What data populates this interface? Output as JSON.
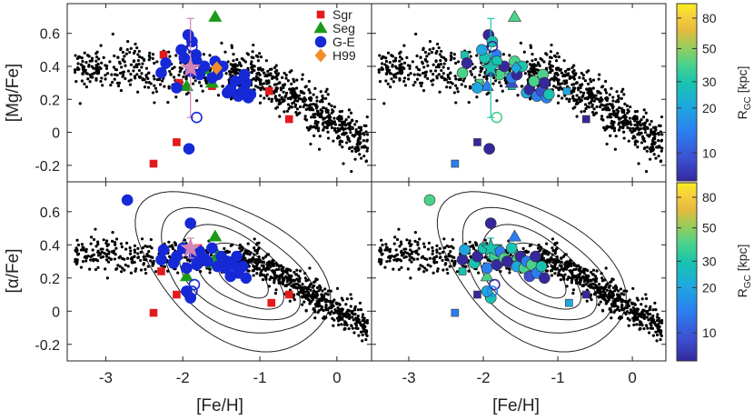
{
  "figure": {
    "xlabel": "[Fe/H]",
    "ylabel_top": "[Mg/Fe]",
    "ylabel_bottom": "[α/Fe]",
    "colorbar_label": "R",
    "colorbar_label_sub": "GC",
    "colorbar_label_unit": "[kpc]"
  },
  "chart_data": [
    {
      "type": "scatter",
      "panel": "top-left",
      "xlabel": "[Fe/H]",
      "ylabel": "[Mg/Fe]",
      "xlim": [
        -3.5,
        0.45
      ],
      "ylim": [
        -0.3,
        0.78
      ],
      "xticks": [
        -3,
        -2,
        -1,
        0
      ],
      "yticks": [
        -0.2,
        0,
        0.2,
        0.4,
        0.6
      ],
      "legend": {
        "position": "top-right",
        "entries": [
          "Sgr",
          "Seg",
          "G-E",
          "H99"
        ]
      },
      "series": [
        {
          "name": "Sgr",
          "marker": "square",
          "color": "#e31a1c",
          "x": [
            -2.38,
            -2.25,
            -2.08,
            -1.62,
            -0.88,
            -0.62,
            -2.05
          ],
          "y": [
            -0.19,
            0.47,
            -0.06,
            0.28,
            0.25,
            0.08,
            0.3
          ]
        },
        {
          "name": "Seg",
          "marker": "triangle",
          "color": "#1a9a1a",
          "x": [
            -1.58,
            -1.95,
            -1.62,
            -1.72
          ],
          "y": [
            0.7,
            0.28,
            0.3,
            0.38
          ]
        },
        {
          "name": "G-E",
          "marker": "circle",
          "color": "#1529d6",
          "x": [
            -2.28,
            -2.22,
            -2.08,
            -1.98,
            -1.93,
            -1.88,
            -1.83,
            -1.92,
            -1.78,
            -1.72,
            -1.62,
            -1.58,
            -1.55,
            -1.48,
            -1.42,
            -1.38,
            -1.32,
            -1.28,
            -1.22,
            -1.2,
            -1.18,
            -1.15,
            -1.12,
            -1.9,
            -1.82,
            -2.02
          ],
          "y": [
            0.36,
            0.42,
            0.27,
            0.45,
            0.59,
            0.55,
            0.47,
            -0.1,
            0.35,
            0.4,
            0.33,
            0.43,
            0.35,
            0.4,
            0.24,
            0.26,
            0.31,
            0.22,
            0.25,
            0.35,
            0.3,
            0.21,
            0.23,
            0.37,
            0.43,
            0.5
          ]
        },
        {
          "name": "H99",
          "marker": "diamond",
          "color": "#f28c28",
          "x": [
            -1.56
          ],
          "y": [
            0.39
          ]
        },
        {
          "name": "",
          "marker": "star",
          "color": "#d483b6",
          "x": [
            -1.9
          ],
          "y": [
            0.39
          ],
          "yerr": [
            0.3
          ]
        },
        {
          "name": "",
          "marker": "open-circle",
          "color": "#1529d6",
          "x": [
            -1.88,
            -1.82
          ],
          "y": [
            0.52,
            0.09
          ]
        }
      ]
    },
    {
      "type": "scatter",
      "panel": "bottom-left",
      "xlabel": "[Fe/H]",
      "ylabel": "[α/Fe]",
      "xlim": [
        -3.5,
        0.45
      ],
      "ylim": [
        -0.3,
        0.78
      ],
      "xticks": [
        -3,
        -2,
        -1,
        0
      ],
      "yticks": [
        -0.2,
        0,
        0.2,
        0.4,
        0.6
      ],
      "contours": 5,
      "series": [
        {
          "name": "Sgr",
          "marker": "square",
          "color": "#e31a1c",
          "x": [
            -2.38,
            -2.28,
            -2.08,
            -1.65,
            -0.85,
            -0.62,
            -1.8
          ],
          "y": [
            -0.01,
            0.24,
            0.1,
            0.29,
            0.05,
            0.1,
            0.38
          ]
        },
        {
          "name": "Seg",
          "marker": "triangle",
          "color": "#1a9a1a",
          "x": [
            -1.95,
            -1.58,
            -1.62,
            -1.55
          ],
          "y": [
            0.21,
            0.45,
            0.29,
            0.33
          ]
        },
        {
          "name": "G-E",
          "marker": "circle",
          "color": "#1529d6",
          "x": [
            -2.72,
            -2.28,
            -2.25,
            -2.12,
            -2.08,
            -2.0,
            -1.95,
            -1.9,
            -1.85,
            -1.82,
            -1.78,
            -1.72,
            -1.68,
            -1.62,
            -1.55,
            -1.5,
            -1.45,
            -1.42,
            -1.38,
            -1.35,
            -1.3,
            -1.28,
            -1.22,
            -1.18,
            -1.9,
            -1.95
          ],
          "y": [
            0.67,
            0.31,
            0.37,
            0.29,
            0.33,
            0.38,
            0.26,
            0.53,
            0.33,
            0.28,
            0.36,
            0.32,
            0.3,
            0.38,
            0.27,
            0.33,
            0.26,
            0.3,
            0.21,
            0.28,
            0.33,
            0.23,
            0.27,
            0.2,
            0.08,
            0.12
          ]
        },
        {
          "name": "",
          "marker": "star",
          "color": "#d483b6",
          "x": [
            -1.9
          ],
          "y": [
            0.38
          ],
          "yerr": [
            0.06
          ]
        },
        {
          "name": "",
          "marker": "open-circle",
          "color": "#1529d6",
          "x": [
            -1.85,
            -1.88
          ],
          "y": [
            0.16,
            0.12
          ]
        }
      ]
    },
    {
      "type": "scatter",
      "panel": "top-right",
      "xlabel": "",
      "ylabel": "",
      "xlim": [
        -3.5,
        0.45
      ],
      "ylim": [
        -0.3,
        0.78
      ],
      "colorby": "RGC",
      "colorbar": {
        "scale": "log",
        "range": [
          6.5,
          100
        ],
        "ticks": [
          10,
          20,
          30,
          50,
          80
        ]
      },
      "note": "same star positions as top-left, colored by RGC"
    },
    {
      "type": "scatter",
      "panel": "bottom-right",
      "xlabel": "",
      "ylabel": "",
      "xlim": [
        -3.5,
        0.45
      ],
      "ylim": [
        -0.3,
        0.78
      ],
      "colorby": "RGC",
      "contours": 5,
      "note": "same star positions as bottom-left, colored by RGC"
    }
  ],
  "colorbar": {
    "ticks": [
      10,
      20,
      30,
      50,
      80
    ],
    "colors": [
      "#35289c",
      "#3c4fd0",
      "#2b7ff0",
      "#1ea8e0",
      "#18c3b0",
      "#4bd28a",
      "#9ccc5a",
      "#e6ba3e",
      "#f7d03c",
      "#f9ee20"
    ]
  },
  "legend_labels": [
    "Sgr",
    "Seg",
    "G-E",
    "H99"
  ]
}
